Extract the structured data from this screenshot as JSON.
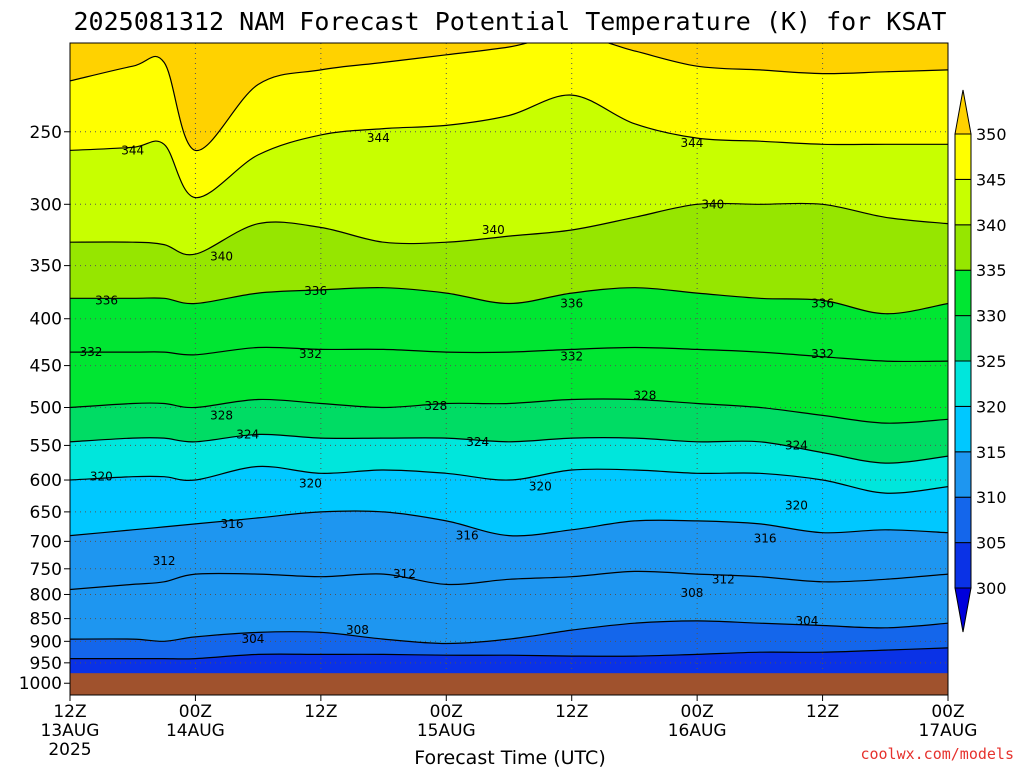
{
  "chart_data": {
    "type": "heatmap",
    "title": "2025081312 NAM Forecast Potential Temperature (K) for KSAT",
    "xlabel": "Forecast Time (UTC)",
    "ylabel": "",
    "y_axis": {
      "scale": "log-pressure",
      "reversed": true,
      "ticks": [
        250,
        300,
        350,
        400,
        450,
        500,
        550,
        600,
        650,
        700,
        750,
        800,
        850,
        900,
        950,
        1000
      ]
    },
    "x_axis": {
      "hours": [
        0,
        12,
        24,
        36,
        48,
        60,
        72,
        84
      ],
      "ticks": [
        {
          "hour": 0,
          "lines": [
            "12Z",
            "13AUG",
            "2025"
          ]
        },
        {
          "hour": 12,
          "lines": [
            "00Z",
            "14AUG"
          ]
        },
        {
          "hour": 24,
          "lines": [
            "12Z"
          ]
        },
        {
          "hour": 36,
          "lines": [
            "00Z",
            "15AUG"
          ]
        },
        {
          "hour": 48,
          "lines": [
            "12Z"
          ]
        },
        {
          "hour": 60,
          "lines": [
            "00Z",
            "16AUG"
          ]
        },
        {
          "hour": 72,
          "lines": [
            "12Z"
          ]
        },
        {
          "hour": 84,
          "lines": [
            "00Z",
            "17AUG"
          ]
        }
      ]
    },
    "grid": true,
    "colorbar": {
      "levels": [
        300,
        305,
        310,
        315,
        320,
        325,
        330,
        335,
        340,
        345,
        350
      ],
      "colors": [
        "#0000dc",
        "#0a32e6",
        "#1466eb",
        "#1e96f0",
        "#00c8ff",
        "#00e6dc",
        "#00dc64",
        "#00e632",
        "#96e600",
        "#c8ff00",
        "#ffff00",
        "#ffd200"
      ],
      "extend": "both"
    },
    "ground_color": "#a0522d",
    "ground_pressure": 975,
    "series": [
      {
        "theta": 304,
        "pressure": [
          940,
          940,
          940,
          940,
          930,
          930,
          930,
          932,
          932,
          934,
          934,
          930,
          925,
          925,
          920,
          915
        ]
      },
      {
        "theta": 308,
        "pressure": [
          895,
          895,
          900,
          890,
          880,
          880,
          895,
          905,
          895,
          875,
          860,
          855,
          860,
          865,
          870,
          860
        ]
      },
      {
        "theta": 312,
        "pressure": [
          790,
          780,
          775,
          760,
          760,
          765,
          760,
          780,
          770,
          765,
          755,
          760,
          765,
          775,
          770,
          760
        ]
      },
      {
        "theta": 316,
        "pressure": [
          690,
          680,
          675,
          670,
          660,
          650,
          650,
          665,
          690,
          680,
          665,
          665,
          670,
          685,
          680,
          685
        ]
      },
      {
        "theta": 320,
        "pressure": [
          600,
          595,
          595,
          600,
          580,
          590,
          585,
          590,
          600,
          585,
          585,
          590,
          590,
          600,
          620,
          610
        ]
      },
      {
        "theta": 324,
        "pressure": [
          545,
          540,
          540,
          545,
          535,
          540,
          540,
          540,
          545,
          540,
          540,
          545,
          545,
          560,
          575,
          565
        ]
      },
      {
        "theta": 328,
        "pressure": [
          500,
          495,
          495,
          500,
          490,
          495,
          500,
          495,
          495,
          490,
          490,
          495,
          500,
          510,
          520,
          515
        ]
      },
      {
        "theta": 332,
        "pressure": [
          435,
          435,
          435,
          438,
          430,
          432,
          432,
          435,
          435,
          432,
          430,
          432,
          435,
          440,
          445,
          445
        ]
      },
      {
        "theta": 336,
        "pressure": [
          380,
          380,
          380,
          385,
          375,
          372,
          370,
          375,
          385,
          375,
          370,
          375,
          380,
          382,
          395,
          385
        ]
      },
      {
        "theta": 340,
        "pressure": [
          330,
          330,
          332,
          340,
          315,
          318,
          330,
          330,
          325,
          320,
          310,
          300,
          300,
          300,
          310,
          315
        ]
      },
      {
        "theta": 344,
        "pressure": [
          262,
          260,
          258,
          295,
          265,
          252,
          248,
          246,
          240,
          228,
          245,
          254,
          256,
          258,
          258,
          258
        ]
      },
      {
        "theta": 348,
        "pressure": [
          220,
          212,
          210,
          262,
          222,
          214,
          210,
          206,
          202,
          196,
          204,
          212,
          214,
          216,
          215,
          214
        ]
      }
    ],
    "series_hours": [
      0,
      6,
      9,
      12,
      18,
      24,
      30,
      36,
      42,
      48,
      54,
      60,
      66,
      72,
      78,
      84
    ],
    "contour_labels": [
      {
        "text": "344",
        "hour": 6,
        "pressure": 262
      },
      {
        "text": "344",
        "hour": 29.5,
        "pressure": 254
      },
      {
        "text": "344",
        "hour": 59.5,
        "pressure": 257
      },
      {
        "text": "340",
        "hour": 14.5,
        "pressure": 342
      },
      {
        "text": "340",
        "hour": 40.5,
        "pressure": 320
      },
      {
        "text": "340",
        "hour": 61.5,
        "pressure": 300
      },
      {
        "text": "336",
        "hour": 3.5,
        "pressure": 382
      },
      {
        "text": "336",
        "hour": 23.5,
        "pressure": 373
      },
      {
        "text": "336",
        "hour": 48,
        "pressure": 385
      },
      {
        "text": "336",
        "hour": 72,
        "pressure": 385
      },
      {
        "text": "332",
        "hour": 2,
        "pressure": 435
      },
      {
        "text": "332",
        "hour": 23,
        "pressure": 437
      },
      {
        "text": "332",
        "hour": 48,
        "pressure": 440
      },
      {
        "text": "332",
        "hour": 72,
        "pressure": 437
      },
      {
        "text": "328",
        "hour": 14.5,
        "pressure": 510
      },
      {
        "text": "328",
        "hour": 35,
        "pressure": 498
      },
      {
        "text": "328",
        "hour": 55,
        "pressure": 485
      },
      {
        "text": "324",
        "hour": 17,
        "pressure": 535
      },
      {
        "text": "324",
        "hour": 39,
        "pressure": 545
      },
      {
        "text": "324",
        "hour": 69.5,
        "pressure": 550
      },
      {
        "text": "320",
        "hour": 3,
        "pressure": 595
      },
      {
        "text": "320",
        "hour": 23,
        "pressure": 605
      },
      {
        "text": "320",
        "hour": 45,
        "pressure": 610
      },
      {
        "text": "320",
        "hour": 69.5,
        "pressure": 640
      },
      {
        "text": "316",
        "hour": 15.5,
        "pressure": 670
      },
      {
        "text": "316",
        "hour": 38,
        "pressure": 690
      },
      {
        "text": "316",
        "hour": 66.5,
        "pressure": 695
      },
      {
        "text": "312",
        "hour": 9,
        "pressure": 735
      },
      {
        "text": "312",
        "hour": 32,
        "pressure": 760
      },
      {
        "text": "312",
        "hour": 62.5,
        "pressure": 770
      },
      {
        "text": "308",
        "hour": 27.5,
        "pressure": 875
      },
      {
        "text": "308",
        "hour": 59.5,
        "pressure": 797
      },
      {
        "text": "304",
        "hour": 17.5,
        "pressure": 895
      },
      {
        "text": "304",
        "hour": 70.5,
        "pressure": 855
      }
    ]
  },
  "credit": {
    "text": "coolwx.com/models",
    "color": "#e6322d"
  }
}
